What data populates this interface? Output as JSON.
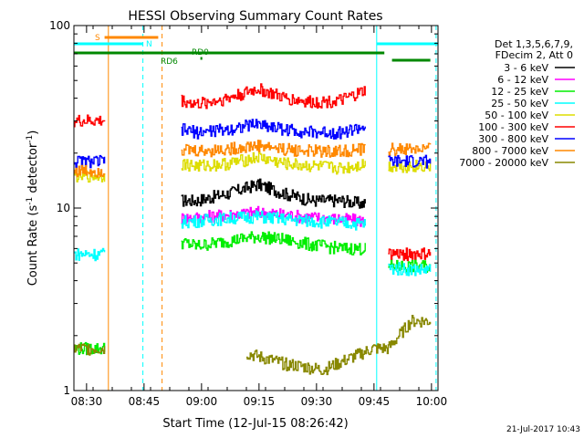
{
  "chart_data": {
    "type": "line",
    "title": "HESSI Observing Summary Count Rates",
    "xlabel": "Start Time (12-Jul-15 08:26:42)",
    "ylabel_main": "Count Rate (s",
    "ylabel_sup": "-1",
    "ylabel_end": " detector",
    "ylabel_sup2": "-1",
    "ylabel_close": ")",
    "x_unit": "minutes after 08:26:42",
    "xlim": [
      0,
      95
    ],
    "ylim": [
      1,
      100
    ],
    "y_scale": "log",
    "xticks": [
      {
        "label": "08:30",
        "x": 3.3
      },
      {
        "label": "08:45",
        "x": 18.3
      },
      {
        "label": "09:00",
        "x": 33.3
      },
      {
        "label": "09:15",
        "x": 48.3
      },
      {
        "label": "09:30",
        "x": 63.3
      },
      {
        "label": "09:45",
        "x": 78.3
      },
      {
        "label": "10:00",
        "x": 93.3
      }
    ],
    "yticks": [
      {
        "label": "1",
        "y": 1
      },
      {
        "label": "10",
        "y": 10
      },
      {
        "label": "100",
        "y": 100
      }
    ],
    "legend_header": [
      "Det 1,3,5,6,7,9,",
      "FDecim 2, Att 0"
    ],
    "legend_placement": "right",
    "footer_date": "21-Jul-2017 10:43",
    "series": [
      {
        "name": "3 - 6 keV",
        "color": "#000000",
        "x": [
          0,
          8,
          25,
          28,
          32,
          40,
          48,
          55,
          62,
          70,
          76,
          80
        ],
        "y": [
          null,
          null,
          null,
          11,
          11,
          12,
          13.5,
          12,
          11,
          11,
          10.5,
          null
        ]
      },
      {
        "name": "6 - 12 keV",
        "color": "#ff00ff",
        "x": [
          0,
          8,
          25,
          28,
          32,
          40,
          48,
          55,
          62,
          70,
          76,
          80
        ],
        "y": [
          null,
          null,
          null,
          8.8,
          8.9,
          9.2,
          9.5,
          9.2,
          8.9,
          8.7,
          8.5,
          null
        ]
      },
      {
        "name": "12 - 25 keV",
        "color": "#00ee00",
        "x": [
          0,
          8,
          25,
          28,
          32,
          40,
          48,
          55,
          62,
          70,
          76,
          80,
          82,
          90,
          93
        ],
        "y": [
          1.7,
          1.7,
          null,
          6.5,
          6.2,
          6.6,
          7.0,
          6.7,
          6.3,
          6.0,
          6.0,
          null,
          4.8,
          4.8,
          4.8
        ]
      },
      {
        "name": "25 - 50 keV",
        "color": "#00ffff",
        "x": [
          0,
          8,
          25,
          28,
          32,
          40,
          48,
          55,
          62,
          70,
          76,
          80,
          82,
          90,
          93
        ],
        "y": [
          5.6,
          5.6,
          null,
          8.4,
          8.5,
          8.8,
          9.0,
          8.7,
          8.5,
          8.3,
          8.2,
          null,
          4.7,
          4.6,
          4.6
        ]
      },
      {
        "name": "50 - 100 keV",
        "color": "#dddd00",
        "x": [
          0,
          8,
          25,
          28,
          32,
          40,
          48,
          55,
          62,
          70,
          76,
          80,
          82,
          90,
          93
        ],
        "y": [
          15,
          15,
          null,
          17.5,
          17,
          17.5,
          19,
          17.5,
          17,
          16.5,
          17.5,
          null,
          17,
          17,
          17
        ]
      },
      {
        "name": "100 - 300 keV",
        "color": "#ff0000",
        "x": [
          0,
          8,
          25,
          28,
          32,
          40,
          48,
          55,
          62,
          70,
          76,
          80,
          82,
          90,
          93
        ],
        "y": [
          30,
          30,
          null,
          39,
          37,
          40,
          45,
          40,
          38,
          39,
          44,
          null,
          5.6,
          5.6,
          5.6
        ]
      },
      {
        "name": "300 - 800 keV",
        "color": "#0000ff",
        "x": [
          0,
          8,
          25,
          28,
          32,
          40,
          48,
          55,
          62,
          70,
          76,
          80,
          82,
          90,
          93
        ],
        "y": [
          18,
          18,
          null,
          27,
          26,
          27,
          29,
          27,
          26,
          26,
          28,
          null,
          18,
          18,
          18
        ]
      },
      {
        "name": "800 - 7000 keV",
        "color": "#ff8800",
        "x": [
          0,
          8,
          25,
          28,
          32,
          40,
          48,
          55,
          62,
          70,
          76,
          80,
          82,
          90,
          93
        ],
        "y": [
          16,
          16,
          null,
          21,
          20.5,
          21,
          22,
          21,
          20.5,
          20.5,
          21,
          null,
          21,
          21,
          21
        ]
      },
      {
        "name": "7000 - 20000 keV",
        "color": "#888800",
        "x": [
          0,
          8,
          40,
          45,
          55,
          65,
          78,
          82,
          88,
          93
        ],
        "y": [
          1.7,
          1.7,
          null,
          1.6,
          1.4,
          1.3,
          1.7,
          1.7,
          2.4,
          2.4
        ]
      }
    ],
    "state_bars": [
      {
        "label": "S",
        "color": "#ff8800",
        "x_start": 8,
        "x_end": 22
      },
      {
        "label": "N",
        "color": "#00ffff",
        "x_start": 0,
        "x_end": 18
      },
      {
        "label": "",
        "color": "#00ffff",
        "x_start": 79,
        "x_end": 95
      },
      {
        "label": "RD0",
        "color": "#008800",
        "x_start": 0,
        "x_end": 81
      },
      {
        "label": "RD6",
        "color": "#008800",
        "x_start": 33,
        "x_end": 33.5
      },
      {
        "label": "",
        "color": "#008800",
        "x_start": 83,
        "x_end": 93
      }
    ],
    "vertical_lines": [
      {
        "x": 9,
        "color": "#ff8800",
        "style": "solid"
      },
      {
        "x": 18,
        "color": "#00ffff",
        "style": "dashed"
      },
      {
        "x": 23,
        "color": "#ff8800",
        "style": "dashed"
      },
      {
        "x": 79,
        "color": "#00ffff",
        "style": "solid"
      },
      {
        "x": 94.5,
        "color": "#00ffff",
        "style": "dashed"
      }
    ]
  }
}
